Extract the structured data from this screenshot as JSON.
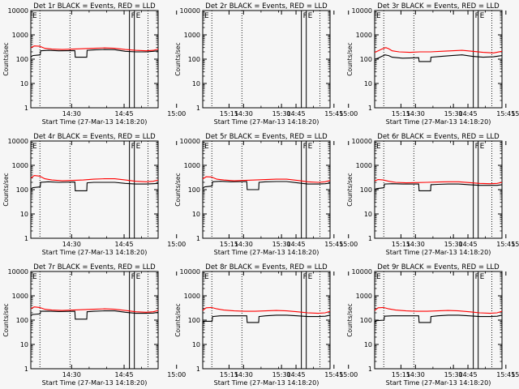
{
  "figure": {
    "xlabel": "Start Time (27-Mar-13 14:18:20)",
    "ylabel": "Counts/sec",
    "x_tick_labels": [
      "14:30",
      "14:45",
      "15:00",
      "15:15",
      "15:30",
      "15:45"
    ],
    "y_tick_labels": [
      "1",
      "10",
      "100",
      "1000",
      "10000"
    ],
    "flare_markers": [
      "F",
      "E"
    ],
    "colors": {
      "events": "#000000",
      "lld": "#ff0000",
      "background": "#f6f6f6"
    }
  },
  "chart_data": [
    {
      "type": "line",
      "title": "Det 1r BLACK = Events, RED = LLD",
      "xlabel": "Start Time (27-Mar-13 14:18:20)",
      "ylabel": "Counts/sec",
      "x_unit": "minutes since 14:18:20",
      "xlim": [
        0,
        36.4
      ],
      "ylim": [
        1,
        10000
      ],
      "y_scale": "log",
      "dotted_lines_x": [
        2.6,
        11.2,
        33.5
      ],
      "solid_lines_x": [
        28.2,
        29.6
      ],
      "series": [
        {
          "name": "BLACK = Events",
          "color": "#000000",
          "x": [
            0,
            0.5,
            2.7,
            2.8,
            5,
            8,
            12.6,
            12.7,
            16,
            16.1,
            18,
            21,
            24,
            27,
            30,
            33,
            35,
            36.4
          ],
          "y": [
            120,
            140,
            150,
            220,
            230,
            220,
            225,
            120,
            120,
            230,
            240,
            250,
            245,
            210,
            200,
            200,
            210,
            220
          ]
        },
        {
          "name": "RED = LLD",
          "color": "#ff0000",
          "x": [
            0,
            1,
            2.5,
            4,
            6,
            9,
            12,
            15,
            18,
            21,
            24,
            27,
            30,
            33,
            35,
            36.4
          ],
          "y": [
            300,
            350,
            340,
            280,
            260,
            250,
            260,
            270,
            280,
            290,
            280,
            250,
            230,
            220,
            230,
            260
          ]
        }
      ]
    },
    {
      "type": "line",
      "title": "Det 2r BLACK = Events, RED = LLD",
      "xlabel": "Start Time (27-Mar-13 14:18:20)",
      "ylabel": "Counts/sec",
      "x_unit": "minutes since 14:18:20",
      "xlim": [
        0,
        36.4
      ],
      "ylim": [
        1,
        10000
      ],
      "y_scale": "log",
      "dotted_lines_x": [
        2.6,
        11.2,
        33.5
      ],
      "solid_lines_x": [
        28.2,
        29.6
      ],
      "series": []
    },
    {
      "type": "line",
      "title": "Det 3r BLACK = Events, RED = LLD",
      "xlabel": "Start Time (27-Mar-13 14:18:20)",
      "ylabel": "Counts/sec",
      "x_unit": "minutes since 14:18:20",
      "xlim": [
        0,
        36.4
      ],
      "ylim": [
        1,
        10000
      ],
      "y_scale": "log",
      "dotted_lines_x": [
        2.6,
        11.2,
        33.5
      ],
      "solid_lines_x": [
        28.2,
        29.6
      ],
      "series": [
        {
          "name": "BLACK = Events",
          "color": "#000000",
          "x": [
            0,
            1,
            2,
            3,
            4,
            5,
            8,
            12.6,
            12.7,
            16,
            16.1,
            19,
            22,
            25,
            28,
            31,
            34,
            36.4
          ],
          "y": [
            100,
            110,
            130,
            150,
            140,
            120,
            110,
            115,
            80,
            80,
            120,
            130,
            140,
            150,
            130,
            120,
            125,
            140
          ]
        },
        {
          "name": "RED = LLD",
          "color": "#ff0000",
          "x": [
            0,
            1,
            2,
            3.2,
            4,
            5,
            7,
            10,
            13,
            16,
            19,
            22,
            25,
            28,
            31,
            34,
            36.4
          ],
          "y": [
            190,
            220,
            260,
            300,
            270,
            220,
            200,
            190,
            200,
            200,
            210,
            220,
            230,
            210,
            190,
            180,
            210
          ]
        }
      ]
    },
    {
      "type": "line",
      "title": "Det 4r BLACK = Events, RED = LLD",
      "xlabel": "Start Time (27-Mar-13 14:18:20)",
      "ylabel": "Counts/sec",
      "x_unit": "minutes since 14:18:20",
      "xlim": [
        0,
        36.4
      ],
      "ylim": [
        1,
        10000
      ],
      "y_scale": "log",
      "dotted_lines_x": [
        2.6,
        11.2,
        33.5
      ],
      "solid_lines_x": [
        28.2,
        29.6
      ],
      "series": [
        {
          "name": "BLACK = Events",
          "color": "#000000",
          "x": [
            0,
            0.5,
            2.7,
            2.8,
            5,
            8,
            12.6,
            12.7,
            16,
            16.1,
            18,
            21,
            24,
            27,
            30,
            33,
            35,
            36.4
          ],
          "y": [
            100,
            120,
            130,
            200,
            210,
            200,
            205,
            90,
            90,
            190,
            200,
            200,
            200,
            180,
            170,
            170,
            175,
            180
          ]
        },
        {
          "name": "RED = LLD",
          "color": "#ff0000",
          "x": [
            0,
            1,
            2.5,
            4,
            6,
            9,
            12,
            15,
            18,
            21,
            24,
            27,
            30,
            33,
            35,
            36.4
          ],
          "y": [
            300,
            380,
            360,
            280,
            250,
            230,
            240,
            250,
            270,
            280,
            280,
            250,
            220,
            210,
            220,
            250
          ]
        }
      ]
    },
    {
      "type": "line",
      "title": "Det 5r BLACK = Events, RED = LLD",
      "xlabel": "Start Time (27-Mar-13 14:18:20)",
      "ylabel": "Counts/sec",
      "x_unit": "minutes since 14:18:20",
      "xlim": [
        0,
        36.4
      ],
      "ylim": [
        1,
        10000
      ],
      "y_scale": "log",
      "dotted_lines_x": [
        2.6,
        11.2,
        33.5
      ],
      "solid_lines_x": [
        28.2,
        29.6
      ],
      "series": [
        {
          "name": "BLACK = Events",
          "color": "#000000",
          "x": [
            0,
            0.5,
            2.7,
            2.8,
            5,
            8,
            12.6,
            12.7,
            16,
            16.1,
            18,
            21,
            24,
            27,
            30,
            33,
            35,
            36.4
          ],
          "y": [
            110,
            130,
            140,
            210,
            220,
            210,
            215,
            100,
            100,
            200,
            210,
            215,
            215,
            190,
            170,
            170,
            175,
            185
          ]
        },
        {
          "name": "RED = LLD",
          "color": "#ff0000",
          "x": [
            0,
            1,
            2.5,
            4,
            6,
            9,
            12,
            15,
            18,
            21,
            24,
            27,
            30,
            33,
            35,
            36.4
          ],
          "y": [
            280,
            340,
            330,
            270,
            250,
            230,
            240,
            250,
            260,
            270,
            270,
            240,
            210,
            200,
            210,
            240
          ]
        }
      ]
    },
    {
      "type": "line",
      "title": "Det 6r BLACK = Events, RED = LLD",
      "xlabel": "Start Time (27-Mar-13 14:18:20)",
      "ylabel": "Counts/sec",
      "x_unit": "minutes since 14:18:20",
      "xlim": [
        0,
        36.4
      ],
      "ylim": [
        1,
        10000
      ],
      "y_scale": "log",
      "dotted_lines_x": [
        2.6,
        11.2,
        33.5
      ],
      "solid_lines_x": [
        28.2,
        29.6
      ],
      "series": [
        {
          "name": "BLACK = Events",
          "color": "#000000",
          "x": [
            0,
            0.5,
            2.7,
            2.8,
            5,
            8,
            12.6,
            12.7,
            16,
            16.1,
            18,
            21,
            24,
            27,
            30,
            33,
            35,
            36.4
          ],
          "y": [
            100,
            110,
            120,
            170,
            175,
            170,
            170,
            90,
            90,
            160,
            165,
            170,
            170,
            160,
            150,
            150,
            150,
            160
          ]
        },
        {
          "name": "RED = LLD",
          "color": "#ff0000",
          "x": [
            0,
            1,
            2.5,
            4,
            6,
            9,
            12,
            15,
            18,
            21,
            24,
            27,
            30,
            33,
            35,
            36.4
          ],
          "y": [
            230,
            260,
            250,
            220,
            200,
            190,
            195,
            200,
            205,
            210,
            210,
            195,
            180,
            175,
            180,
            200
          ]
        }
      ]
    },
    {
      "type": "line",
      "title": "Det 7r BLACK = Events, RED = LLD",
      "xlabel": "Start Time (27-Mar-13 14:18:20)",
      "ylabel": "Counts/sec",
      "x_unit": "minutes since 14:18:20",
      "xlim": [
        0,
        36.4
      ],
      "ylim": [
        1,
        10000
      ],
      "y_scale": "log",
      "dotted_lines_x": [
        2.6,
        11.2,
        33.5
      ],
      "solid_lines_x": [
        28.2,
        29.6
      ],
      "series": [
        {
          "name": "BLACK = Events",
          "color": "#000000",
          "x": [
            0,
            0.5,
            2.7,
            2.8,
            5,
            8,
            12.6,
            12.7,
            16,
            16.1,
            18,
            21,
            24,
            27,
            30,
            33,
            35,
            36.4
          ],
          "y": [
            150,
            170,
            180,
            230,
            235,
            225,
            230,
            110,
            110,
            220,
            230,
            240,
            240,
            210,
            190,
            190,
            195,
            210
          ]
        },
        {
          "name": "RED = LLD",
          "color": "#ff0000",
          "x": [
            0,
            1,
            2.5,
            4,
            6,
            9,
            12,
            15,
            18,
            21,
            24,
            27,
            30,
            33,
            35,
            36.4
          ],
          "y": [
            300,
            350,
            330,
            280,
            260,
            250,
            260,
            270,
            280,
            290,
            280,
            250,
            220,
            210,
            220,
            250
          ]
        }
      ]
    },
    {
      "type": "line",
      "title": "Det 8r BLACK = Events, RED = LLD",
      "xlabel": "Start Time (27-Mar-13 14:18:20)",
      "ylabel": "Counts/sec",
      "x_unit": "minutes since 14:18:20",
      "xlim": [
        0,
        36.4
      ],
      "ylim": [
        1,
        10000
      ],
      "y_scale": "log",
      "dotted_lines_x": [
        2.6,
        11.2,
        33.5
      ],
      "solid_lines_x": [
        28.2,
        29.6
      ],
      "series": [
        {
          "name": "BLACK = Events",
          "color": "#000000",
          "x": [
            0,
            0.5,
            2.7,
            2.8,
            5,
            8,
            12.6,
            12.7,
            16,
            16.1,
            18,
            21,
            24,
            27,
            30,
            33,
            35,
            36.4
          ],
          "y": [
            80,
            90,
            90,
            140,
            150,
            150,
            150,
            80,
            80,
            140,
            150,
            160,
            160,
            150,
            140,
            140,
            145,
            160
          ]
        },
        {
          "name": "RED = LLD",
          "color": "#ff0000",
          "x": [
            0,
            1,
            2.5,
            4,
            6,
            9,
            12,
            15,
            18,
            21,
            24,
            27,
            30,
            33,
            35,
            36.4
          ],
          "y": [
            250,
            320,
            330,
            290,
            260,
            240,
            230,
            230,
            240,
            250,
            240,
            220,
            200,
            190,
            200,
            230
          ]
        }
      ]
    },
    {
      "type": "line",
      "title": "Det 9r BLACK = Events, RED = LLD",
      "xlabel": "Start Time (27-Mar-13 14:18:20)",
      "ylabel": "Counts/sec",
      "x_unit": "minutes since 14:18:20",
      "xlim": [
        0,
        36.4
      ],
      "ylim": [
        1,
        10000
      ],
      "y_scale": "log",
      "dotted_lines_x": [
        2.6,
        11.2,
        33.5
      ],
      "solid_lines_x": [
        28.2,
        29.6
      ],
      "series": [
        {
          "name": "BLACK = Events",
          "color": "#000000",
          "x": [
            0,
            0.5,
            2.7,
            2.8,
            5,
            8,
            12.6,
            12.7,
            16,
            16.1,
            18,
            21,
            24,
            27,
            30,
            33,
            35,
            36.4
          ],
          "y": [
            80,
            95,
            100,
            145,
            150,
            150,
            150,
            80,
            80,
            140,
            150,
            160,
            160,
            150,
            140,
            140,
            145,
            160
          ]
        },
        {
          "name": "RED = LLD",
          "color": "#ff0000",
          "x": [
            0,
            1,
            2.5,
            4,
            6,
            9,
            12,
            15,
            18,
            21,
            24,
            27,
            30,
            33,
            35,
            36.4
          ],
          "y": [
            250,
            320,
            330,
            290,
            260,
            240,
            230,
            230,
            240,
            250,
            240,
            220,
            200,
            190,
            200,
            230
          ]
        }
      ]
    }
  ]
}
